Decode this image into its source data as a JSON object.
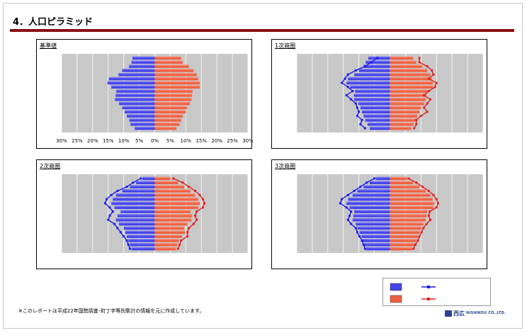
{
  "page": {
    "title": "4．人口ピラミッド",
    "footnote": "※このレポートは平成22年国勢調査･町丁字等別集計の情報を元に作成しています。"
  },
  "logo": {
    "jp": "西広",
    "en": "NISHIKOU CO.,LTD."
  },
  "colors": {
    "male_bar": "#4444ee",
    "female_bar": "#f06040",
    "male_line": "#1a1aee",
    "female_line": "#e02020",
    "plot_bg": "#c8c8c8"
  },
  "chart_data": [
    {
      "type": "bar",
      "title": "基準値",
      "orientation": "horizontal-pyramid",
      "xlim": [
        -30,
        30
      ],
      "x_ticks": [
        "30%",
        "25%",
        "20%",
        "15%",
        "10%",
        "5%",
        "0%",
        "5%",
        "10%",
        "15%",
        "20%",
        "25%",
        "30%"
      ],
      "male": [
        7.2,
        7.5,
        8.3,
        10.5,
        11.7,
        14.8,
        15.2,
        14.0,
        12.4,
        12.6,
        12.8,
        11.5,
        10.5,
        9.7,
        9.0,
        8.2,
        7.8,
        6.5
      ],
      "female": [
        8.5,
        9.0,
        11.0,
        12.5,
        13.5,
        14.0,
        14.5,
        14.5,
        12.2,
        12.0,
        11.8,
        11.3,
        10.4,
        10.0,
        9.0,
        8.5,
        8.0,
        7.0
      ],
      "male_line": null,
      "female_line": null
    },
    {
      "type": "bar",
      "title": "1次商圏",
      "orientation": "horizontal-pyramid",
      "xlim": [
        -30,
        30
      ],
      "male": [
        7.0,
        7.8,
        8.5,
        10.0,
        11.5,
        13.5,
        14.0,
        12.8,
        11.2,
        11.6,
        11.5,
        10.2,
        9.5,
        9.0,
        8.5,
        8.0,
        7.2,
        6.5
      ],
      "female": [
        7.5,
        8.5,
        10.5,
        12.0,
        13.0,
        13.5,
        13.8,
        13.8,
        12.0,
        11.8,
        11.5,
        11.0,
        10.0,
        9.5,
        8.8,
        8.2,
        7.6,
        6.8
      ],
      "male_line": [
        4.0,
        6.0,
        8.0,
        11.0,
        13.5,
        14.5,
        15.5,
        13.5,
        12.0,
        14.0,
        12.5,
        11.0,
        10.5,
        10.0,
        10.5,
        9.0,
        9.5,
        8.0
      ],
      "female_line": [
        9.5,
        9.5,
        12.0,
        13.5,
        14.0,
        12.5,
        15.0,
        14.5,
        12.5,
        11.0,
        13.0,
        12.0,
        11.0,
        12.0,
        10.0,
        8.5,
        8.5,
        7.8
      ]
    },
    {
      "type": "bar",
      "title": "2次商圏",
      "orientation": "horizontal-pyramid",
      "xlim": [
        -30,
        30
      ],
      "male": [
        4.0,
        6.0,
        8.0,
        10.5,
        12.5,
        13.5,
        14.0,
        13.0,
        11.0,
        12.0,
        12.5,
        11.5,
        10.0,
        9.5,
        9.0,
        8.5,
        8.0,
        7.5
      ],
      "female": [
        5.0,
        7.5,
        9.5,
        11.5,
        13.0,
        14.0,
        14.5,
        14.0,
        11.5,
        12.0,
        11.8,
        10.5,
        9.5,
        9.8,
        8.7,
        7.8,
        7.3,
        6.8
      ],
      "male_line": [
        4.5,
        7.0,
        9.0,
        12.0,
        14.0,
        15.5,
        16.0,
        14.5,
        13.5,
        14.5,
        15.0,
        13.0,
        12.0,
        11.0,
        10.0,
        9.0,
        8.5,
        8.0
      ],
      "female_line": [
        6.0,
        9.0,
        11.0,
        13.0,
        14.5,
        15.5,
        16.0,
        15.5,
        13.5,
        13.0,
        13.5,
        12.5,
        11.0,
        10.5,
        10.5,
        8.5,
        8.0,
        7.5
      ]
    },
    {
      "type": "bar",
      "title": "3次商圏",
      "orientation": "horizontal-pyramid",
      "xlim": [
        -30,
        30
      ],
      "male": [
        4.5,
        6.5,
        8.5,
        10.5,
        12.0,
        13.5,
        14.0,
        13.0,
        11.5,
        11.8,
        12.0,
        11.0,
        10.5,
        9.8,
        9.2,
        8.7,
        8.2,
        7.6
      ],
      "female": [
        5.5,
        7.5,
        9.5,
        11.5,
        13.0,
        13.8,
        14.2,
        14.0,
        12.0,
        11.8,
        11.5,
        10.8,
        10.2,
        9.6,
        9.0,
        8.4,
        7.8,
        7.2
      ],
      "male_line": [
        5.0,
        7.5,
        9.5,
        11.5,
        13.5,
        15.5,
        16.0,
        14.0,
        12.5,
        13.0,
        13.5,
        12.5,
        11.0,
        10.5,
        9.8,
        9.0,
        8.5,
        8.0
      ],
      "female_line": [
        6.0,
        8.5,
        10.5,
        12.5,
        14.0,
        15.0,
        15.5,
        15.0,
        12.8,
        12.5,
        13.0,
        11.8,
        10.8,
        10.2,
        9.5,
        9.0,
        8.2,
        7.6
      ]
    }
  ]
}
